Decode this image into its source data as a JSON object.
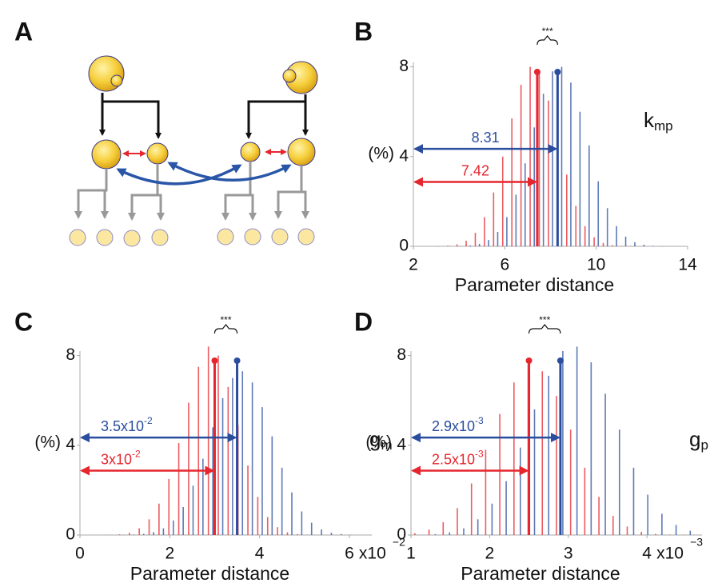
{
  "diagram": {
    "panel": "A"
  },
  "chart_data": [
    {
      "type": "histogram",
      "panel": "B",
      "xlabel": "Parameter distance",
      "ylabel": "(%)",
      "parameter": {
        "base": "k",
        "sub": "mp"
      },
      "significance": "***",
      "xlim": [
        2,
        14
      ],
      "xticks": [
        2,
        6,
        10,
        14
      ],
      "ylim": [
        0,
        8.2
      ],
      "yticks": [
        0,
        4,
        8
      ],
      "bins": [
        3,
        3.4,
        3.8,
        4.2,
        4.6,
        5,
        5.4,
        5.8,
        6.2,
        6.6,
        7,
        7.4,
        7.8,
        8.2,
        8.6,
        9,
        9.4,
        9.8,
        10.2,
        10.6,
        11,
        11.4,
        11.8,
        12.2,
        12.6,
        13
      ],
      "series": [
        {
          "color": "#e5262e",
          "mean": 7.42,
          "values": [
            0.01,
            0.03,
            0.09,
            0.25,
            0.6,
            1.3,
            2.4,
            4.0,
            5.7,
            7.2,
            8.0,
            7.7,
            6.5,
            4.9,
            3.2,
            1.8,
            0.9,
            0.4,
            0.15,
            0.05,
            0.02,
            0.01,
            0,
            0,
            0
          ]
        },
        {
          "color": "#2a4d9e",
          "mean": 8.31,
          "values": [
            0,
            0,
            0.01,
            0.04,
            0.11,
            0.28,
            0.64,
            1.3,
            2.3,
            3.7,
            5.3,
            6.8,
            7.8,
            8.0,
            7.3,
            6.0,
            4.5,
            2.9,
            1.7,
            0.9,
            0.43,
            0.18,
            0.07,
            0.02,
            0.01
          ]
        }
      ]
    },
    {
      "type": "histogram",
      "panel": "C",
      "xlabel": "Parameter distance",
      "ylabel": "(%)",
      "parameter": {
        "base": "g",
        "sub": "m"
      },
      "significance": "***",
      "x_multiplier": {
        "base": "x10",
        "exp": "−2"
      },
      "xlim": [
        0,
        6.5
      ],
      "xticks": [
        0,
        2,
        4,
        6
      ],
      "ylim": [
        0,
        8.2
      ],
      "yticks": [
        0,
        4,
        8
      ],
      "bins": [
        0.6,
        0.82,
        1.04,
        1.26,
        1.48,
        1.7,
        1.92,
        2.14,
        2.36,
        2.58,
        2.8,
        3.02,
        3.24,
        3.46,
        3.68,
        3.9,
        4.12,
        4.34,
        4.56,
        4.78,
        5.0,
        5.22,
        5.44,
        5.66,
        5.88,
        6.1
      ],
      "series": [
        {
          "color": "#e5262e",
          "mean": 3,
          "mean_label": {
            "base": "3x10",
            "exp": "-2"
          },
          "values": [
            0.01,
            0.03,
            0.1,
            0.3,
            0.7,
            1.4,
            2.5,
            4.1,
            5.9,
            7.5,
            8.4,
            8.0,
            6.6,
            4.9,
            3.1,
            1.7,
            0.8,
            0.35,
            0.12,
            0.04,
            0.01,
            0,
            0,
            0,
            0
          ]
        },
        {
          "color": "#2a4d9e",
          "mean": 3.5,
          "mean_label": {
            "base": "3.5x10",
            "exp": "-2"
          },
          "values": [
            0,
            0.01,
            0.02,
            0.05,
            0.13,
            0.3,
            0.65,
            1.25,
            2.2,
            3.4,
            4.8,
            6.1,
            7.0,
            7.3,
            6.8,
            5.7,
            4.4,
            3.0,
            1.9,
            1.05,
            0.55,
            0.25,
            0.1,
            0.04,
            0.01
          ]
        }
      ]
    },
    {
      "type": "histogram",
      "panel": "D",
      "xlabel": "Parameter distance",
      "ylabel": "(%)",
      "parameter": {
        "base": "g",
        "sub": "p"
      },
      "significance": "***",
      "x_multiplier": {
        "base": "x10",
        "exp": "−3"
      },
      "xlim": [
        1,
        4.7
      ],
      "xticks": [
        1,
        2,
        3,
        4
      ],
      "ylim": [
        0,
        8.2
      ],
      "yticks": [
        0,
        4,
        8
      ],
      "bins": [
        1,
        1.18,
        1.36,
        1.54,
        1.72,
        1.9,
        2.08,
        2.26,
        2.44,
        2.62,
        2.8,
        2.98,
        3.16,
        3.34,
        3.52,
        3.7,
        3.88,
        4.06,
        4.24,
        4.42,
        4.6
      ],
      "series": [
        {
          "color": "#e5262e",
          "mean": 2.5,
          "mean_label": {
            "base": "2.5x10",
            "exp": "-3"
          },
          "values": [
            0.08,
            0.24,
            0.57,
            1.2,
            2.3,
            3.8,
            5.4,
            6.8,
            7.6,
            7.3,
            6.2,
            4.7,
            3.0,
            1.7,
            0.85,
            0.38,
            0.14,
            0.05,
            0.02,
            0.01
          ]
        },
        {
          "color": "#2a4d9e",
          "mean": 2.9,
          "mean_label": {
            "base": "2.9x10",
            "exp": "-3"
          },
          "values": [
            0.01,
            0.04,
            0.12,
            0.3,
            0.7,
            1.4,
            2.4,
            3.9,
            5.6,
            7.1,
            8.2,
            8.4,
            7.7,
            6.3,
            4.7,
            3.0,
            1.8,
            0.95,
            0.45,
            0.19
          ]
        }
      ]
    }
  ]
}
